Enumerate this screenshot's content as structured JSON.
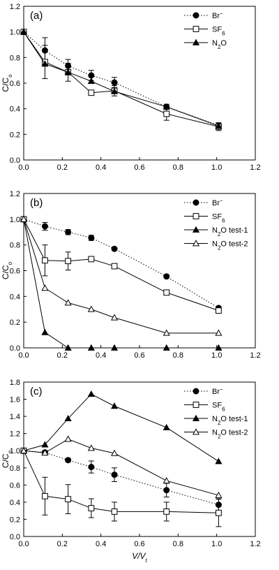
{
  "chart_data": [
    {
      "type": "line",
      "panel_label": "(a)",
      "ylabel": "C/C",
      "ylabel_sub": "o",
      "xlabel": "",
      "xlim": [
        0,
        1.2
      ],
      "ylim": [
        0,
        1.2
      ],
      "xticks": [
        "0.0",
        "0.2",
        "0.4",
        "0.6",
        "0.8",
        "1.0",
        "1.2"
      ],
      "yticks": [
        "0.0",
        "0.2",
        "0.4",
        "0.6",
        "0.8",
        "1.0",
        "1.2"
      ],
      "grid": false,
      "legend_position": "top-right",
      "series": [
        {
          "name": "Br",
          "name_sup": "−",
          "marker": "circle-filled",
          "line": "dotted",
          "x": [
            0,
            0.11,
            0.23,
            0.35,
            0.47,
            0.74,
            1.01
          ],
          "y": [
            1.0,
            0.855,
            0.735,
            0.66,
            0.605,
            0.415,
            0.27
          ],
          "err": [
            0,
            0.1,
            0.05,
            0.04,
            0.04,
            0.02,
            0.02
          ]
        },
        {
          "name": "SF",
          "name_sub": "6",
          "marker": "square-open",
          "line": "solid",
          "x": [
            0,
            0.11,
            0.23,
            0.35,
            0.47,
            0.74,
            1.01
          ],
          "y": [
            1.0,
            0.765,
            0.685,
            0.525,
            0.54,
            0.36,
            0.26
          ],
          "err": [
            0,
            0.13,
            0.07,
            0.02,
            0.04,
            0.05,
            0.03
          ]
        },
        {
          "name": "N",
          "name_sub": "2",
          "name_tail": "O",
          "marker": "triangle-filled",
          "line": "solid",
          "x": [
            0,
            0.11,
            0.23,
            0.35,
            0.47,
            0.74,
            1.01
          ],
          "y": [
            1.0,
            0.75,
            0.685,
            0.615,
            0.535,
            0.415,
            0.265
          ],
          "err": [
            0,
            0,
            0,
            0,
            0,
            0,
            0
          ]
        }
      ]
    },
    {
      "type": "line",
      "panel_label": "(b)",
      "ylabel": "C/C",
      "ylabel_sub": "o",
      "xlabel": "",
      "xlim": [
        0,
        1.2
      ],
      "ylim": [
        0,
        1.2
      ],
      "xticks": [
        "0.0",
        "0.2",
        "0.4",
        "0.6",
        "0.8",
        "1.0",
        "1.2"
      ],
      "yticks": [
        "0.0",
        "0.2",
        "0.4",
        "0.6",
        "0.8",
        "1.0",
        "1.2"
      ],
      "grid": false,
      "legend_position": "top-right",
      "series": [
        {
          "name": "Br",
          "name_sup": "−",
          "marker": "circle-filled",
          "line": "dotted",
          "x": [
            0,
            0.11,
            0.23,
            0.35,
            0.47,
            0.74,
            1.01
          ],
          "y": [
            1.0,
            0.945,
            0.9,
            0.855,
            0.77,
            0.555,
            0.31
          ],
          "err": [
            0,
            0.03,
            0.02,
            0.02,
            0.01,
            0.01,
            0.01
          ]
        },
        {
          "name": "SF",
          "name_sub": "6",
          "marker": "square-open",
          "line": "solid",
          "x": [
            0,
            0.11,
            0.23,
            0.35,
            0.47,
            0.74,
            1.01
          ],
          "y": [
            1.0,
            0.68,
            0.675,
            0.69,
            0.635,
            0.43,
            0.29
          ],
          "err": [
            0,
            0.12,
            0.07,
            0.01,
            0.01,
            0.02,
            0.01
          ]
        },
        {
          "name": "N",
          "name_sub": "2",
          "name_tail": "O test-1",
          "marker": "triangle-filled",
          "line": "solid",
          "x": [
            0,
            0.11,
            0.23,
            0.35,
            0.47,
            0.74,
            1.01
          ],
          "y": [
            1.0,
            0.12,
            0.0,
            0.0,
            0.0,
            0.0,
            0.0
          ],
          "err": [
            0,
            0,
            0,
            0,
            0,
            0,
            0
          ]
        },
        {
          "name": "N",
          "name_sub": "2",
          "name_tail": "O test-2",
          "marker": "triangle-open",
          "line": "solid",
          "x": [
            0,
            0.11,
            0.23,
            0.35,
            0.47,
            0.74,
            1.01
          ],
          "y": [
            1.0,
            0.465,
            0.35,
            0.3,
            0.235,
            0.115,
            0.115
          ],
          "err": [
            0,
            0,
            0,
            0,
            0,
            0,
            0
          ]
        }
      ]
    },
    {
      "type": "line",
      "panel_label": "(c)",
      "ylabel": "C/C",
      "ylabel_sub": "o",
      "xlabel": "V/V",
      "xlabel_sub": "t",
      "xlim": [
        0,
        1.2
      ],
      "ylim": [
        0,
        1.8
      ],
      "xticks": [
        "0.0",
        "0.2",
        "0.4",
        "0.6",
        "0.8",
        "1.0",
        "1.2"
      ],
      "yticks": [
        "0.0",
        "0.2",
        "0.4",
        "0.6",
        "0.8",
        "1.0",
        "1.2",
        "1.4",
        "1.6",
        "1.8"
      ],
      "grid": false,
      "legend_position": "top-right",
      "series": [
        {
          "name": "Br",
          "name_sup": "−",
          "marker": "circle-filled",
          "line": "dotted",
          "x": [
            0,
            0.11,
            0.23,
            0.35,
            0.47,
            0.74,
            1.01
          ],
          "y": [
            1.0,
            0.98,
            0.89,
            0.81,
            0.72,
            0.54,
            0.37
          ],
          "err": [
            0,
            0.02,
            0.02,
            0.07,
            0.08,
            0.08,
            0.07
          ]
        },
        {
          "name": "SF",
          "name_sub": "6",
          "marker": "square-open",
          "line": "solid",
          "x": [
            0,
            0.11,
            0.23,
            0.35,
            0.47,
            0.74,
            1.01
          ],
          "y": [
            1.0,
            0.47,
            0.435,
            0.33,
            0.29,
            0.29,
            0.275
          ],
          "err": [
            0,
            0.22,
            0.17,
            0.11,
            0.11,
            0.11,
            0.16
          ]
        },
        {
          "name": "N",
          "name_sub": "2",
          "name_tail": "O test-1",
          "marker": "triangle-filled",
          "line": "solid",
          "x": [
            0,
            0.11,
            0.23,
            0.35,
            0.47,
            0.74,
            1.01
          ],
          "y": [
            1.0,
            1.07,
            1.375,
            1.66,
            1.52,
            1.27,
            0.875
          ],
          "err": [
            0,
            0,
            0,
            0,
            0,
            0,
            0
          ]
        },
        {
          "name": "N",
          "name_sub": "2",
          "name_tail": "O test-2",
          "marker": "triangle-open",
          "line": "solid",
          "x": [
            0,
            0.11,
            0.23,
            0.35,
            0.47,
            0.74,
            1.01
          ],
          "y": [
            1.0,
            0.975,
            1.135,
            1.03,
            0.97,
            0.65,
            0.48
          ],
          "err": [
            0,
            0,
            0,
            0,
            0,
            0,
            0
          ]
        }
      ]
    }
  ]
}
